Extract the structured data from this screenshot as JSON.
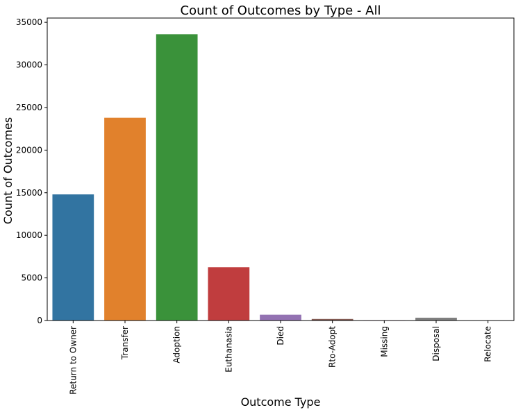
{
  "chart_data": {
    "type": "bar",
    "title": "Count of Outcomes by Type - All",
    "xlabel": "Outcome Type",
    "ylabel": "Count of Outcomes",
    "categories": [
      "Return to Owner",
      "Transfer",
      "Adoption",
      "Euthanasia",
      "Died",
      "Rto-Adopt",
      "Missing",
      "Disposal",
      "Relocate"
    ],
    "values": [
      14800,
      23800,
      33600,
      6250,
      680,
      180,
      45,
      330,
      15
    ],
    "colors": [
      "#3274a1",
      "#e1812c",
      "#3a923a",
      "#c03d3e",
      "#9372b2",
      "#845b53",
      "#d684bd",
      "#7f7f7f",
      "#a9aa35"
    ],
    "ylim": [
      0,
      35500
    ],
    "yticks": [
      0,
      5000,
      10000,
      15000,
      20000,
      25000,
      30000,
      35000
    ],
    "ytick_labels": [
      "0",
      "5000",
      "10000",
      "15000",
      "20000",
      "25000",
      "30000",
      "35000"
    ],
    "grid": false,
    "legend": "none"
  }
}
